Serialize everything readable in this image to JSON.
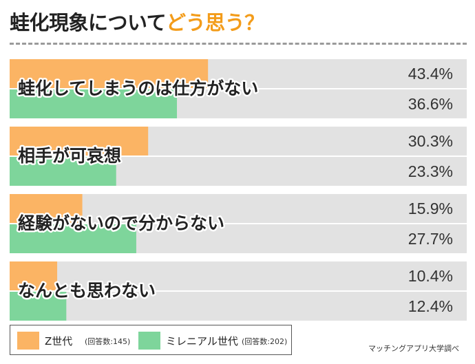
{
  "title": {
    "main": "蛙化現象について",
    "accent": "どう思う？"
  },
  "colors": {
    "accent": "#f39c1a",
    "series_z": "#fbb464",
    "series_millennial": "#7ed59b",
    "track": "#e2e2e2"
  },
  "chart_data": {
    "type": "bar",
    "orientation": "horizontal",
    "unit": "%",
    "xlim": [
      0,
      100
    ],
    "categories": [
      "蛙化してしまうのは仕方がない",
      "相手が可哀想",
      "経験がないので分からない",
      "なんとも思わない"
    ],
    "series": [
      {
        "name": "Z世代",
        "values": [
          43.4,
          30.3,
          15.9,
          10.4
        ],
        "labels": [
          "43.4%",
          "30.3%",
          "15.9%",
          "10.4%"
        ]
      },
      {
        "name": "ミレニアル世代",
        "values": [
          36.6,
          23.3,
          27.7,
          12.4
        ],
        "labels": [
          "36.6%",
          "23.3%",
          "27.7%",
          "12.4%"
        ]
      }
    ]
  },
  "legend": {
    "items": [
      {
        "name": "Z世代",
        "note": "(回答数:145)"
      },
      {
        "name": "ミレニアル世代",
        "note": "(回答数:202)"
      }
    ]
  },
  "credit": "マッチングアプリ大学調べ"
}
